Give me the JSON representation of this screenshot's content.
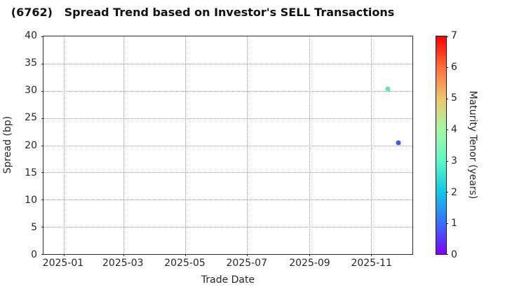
{
  "chart_data": {
    "type": "scatter",
    "title": "(6762)   Spread Trend based on Investor's SELL Transactions",
    "xlabel": "Trade Date",
    "ylabel": "Spread (bp)",
    "x_axis": {
      "type": "date",
      "range": [
        "2024-12-12",
        "2025-12-12"
      ],
      "ticks": [
        {
          "label": "2025-01",
          "date": "2025-01-01"
        },
        {
          "label": "2025-03",
          "date": "2025-03-01"
        },
        {
          "label": "2025-05",
          "date": "2025-05-01"
        },
        {
          "label": "2025-07",
          "date": "2025-07-01"
        },
        {
          "label": "2025-09",
          "date": "2025-09-01"
        },
        {
          "label": "2025-11",
          "date": "2025-11-01"
        }
      ]
    },
    "y_axis": {
      "range": [
        0,
        40
      ],
      "ticks": [
        0,
        5,
        10,
        15,
        20,
        25,
        30,
        35,
        40
      ]
    },
    "grid": {
      "show": true,
      "style": "dotted",
      "color": "#9a9a9a"
    },
    "points": [
      {
        "trade_date": "2025-11-18",
        "spread_bp": 30.4,
        "maturity_tenor_years": 3.2,
        "color": "#55EDA5"
      },
      {
        "trade_date": "2025-11-28",
        "spread_bp": 20.5,
        "maturity_tenor_years": 1.0,
        "color": "#3C5BEE"
      }
    ],
    "colorbar": {
      "label": "Maturity Tenor (years)",
      "min": 0,
      "max": 7,
      "ticks": [
        0,
        1,
        2,
        3,
        4,
        5,
        6,
        7
      ],
      "colormap": "rainbow",
      "gradient_bottom_to_top": [
        "#8000FF",
        "#376FF9",
        "#12C7E6",
        "#5BF9C7",
        "#A4F9A4",
        "#EDC76F",
        "#FF6F39",
        "#FF0000"
      ]
    },
    "layout": {
      "legend": "none",
      "background": "#ffffff",
      "frame_color": "#2b2b2b"
    }
  }
}
